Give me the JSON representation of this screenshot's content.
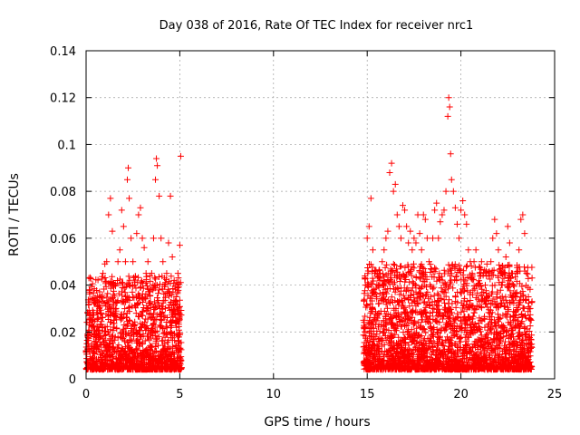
{
  "chart_data": {
    "type": "scatter",
    "title": "Day 038 of 2016, Rate Of TEC Index for receiver nrc1",
    "xlabel": "GPS time / hours",
    "ylabel": "ROTI / TECUs",
    "xlim": [
      0,
      25
    ],
    "ylim": [
      0,
      0.14
    ],
    "xticks": [
      0,
      5,
      10,
      15,
      20,
      25
    ],
    "xtick_labels": [
      "0",
      "5",
      "10",
      "15",
      "20",
      "25"
    ],
    "yticks": [
      0,
      0.02,
      0.04,
      0.06,
      0.08,
      0.1,
      0.12,
      0.14
    ],
    "ytick_labels": [
      "0",
      "0.02",
      "0.04",
      "0.06",
      "0.08",
      "0.1",
      "0.12",
      "0.14"
    ],
    "grid": true,
    "marker": "+",
    "color": "#ff0000",
    "series": [
      {
        "name": "nrc1",
        "points": [
          [
            0.0,
            0.012
          ],
          [
            0.1,
            0.028
          ],
          [
            0.15,
            0.043
          ],
          [
            0.2,
            0.038
          ],
          [
            0.3,
            0.025
          ],
          [
            0.4,
            0.018
          ],
          [
            0.5,
            0.016
          ],
          [
            0.6,
            0.022
          ],
          [
            0.7,
            0.03
          ],
          [
            0.8,
            0.035
          ],
          [
            0.9,
            0.045
          ],
          [
            1.0,
            0.049
          ],
          [
            1.1,
            0.05
          ],
          [
            1.2,
            0.07
          ],
          [
            1.3,
            0.077
          ],
          [
            1.4,
            0.063
          ],
          [
            1.5,
            0.04
          ],
          [
            1.6,
            0.03
          ],
          [
            1.7,
            0.05
          ],
          [
            1.8,
            0.055
          ],
          [
            1.9,
            0.072
          ],
          [
            2.0,
            0.065
          ],
          [
            2.1,
            0.05
          ],
          [
            2.2,
            0.085
          ],
          [
            2.25,
            0.09
          ],
          [
            2.3,
            0.077
          ],
          [
            2.4,
            0.06
          ],
          [
            2.5,
            0.05
          ],
          [
            2.6,
            0.04
          ],
          [
            2.7,
            0.062
          ],
          [
            2.8,
            0.07
          ],
          [
            2.9,
            0.073
          ],
          [
            3.0,
            0.06
          ],
          [
            3.1,
            0.056
          ],
          [
            3.2,
            0.045
          ],
          [
            3.3,
            0.05
          ],
          [
            3.4,
            0.038
          ],
          [
            3.5,
            0.045
          ],
          [
            3.6,
            0.06
          ],
          [
            3.7,
            0.085
          ],
          [
            3.75,
            0.094
          ],
          [
            3.8,
            0.091
          ],
          [
            3.9,
            0.078
          ],
          [
            4.0,
            0.06
          ],
          [
            4.1,
            0.05
          ],
          [
            4.2,
            0.04
          ],
          [
            4.3,
            0.045
          ],
          [
            4.4,
            0.058
          ],
          [
            4.5,
            0.078
          ],
          [
            4.6,
            0.052
          ],
          [
            4.7,
            0.042
          ],
          [
            4.8,
            0.035
          ],
          [
            4.9,
            0.045
          ],
          [
            5.0,
            0.057
          ],
          [
            5.05,
            0.095
          ],
          [
            14.8,
            0.025
          ],
          [
            14.9,
            0.04
          ],
          [
            15.0,
            0.06
          ],
          [
            15.1,
            0.065
          ],
          [
            15.2,
            0.077
          ],
          [
            15.3,
            0.055
          ],
          [
            15.4,
            0.045
          ],
          [
            15.5,
            0.035
          ],
          [
            15.6,
            0.04
          ],
          [
            15.7,
            0.045
          ],
          [
            15.8,
            0.05
          ],
          [
            15.9,
            0.055
          ],
          [
            16.0,
            0.06
          ],
          [
            16.1,
            0.063
          ],
          [
            16.2,
            0.088
          ],
          [
            16.3,
            0.092
          ],
          [
            16.4,
            0.08
          ],
          [
            16.5,
            0.083
          ],
          [
            16.6,
            0.07
          ],
          [
            16.7,
            0.065
          ],
          [
            16.8,
            0.06
          ],
          [
            16.9,
            0.074
          ],
          [
            17.0,
            0.072
          ],
          [
            17.1,
            0.065
          ],
          [
            17.2,
            0.058
          ],
          [
            17.3,
            0.063
          ],
          [
            17.4,
            0.055
          ],
          [
            17.5,
            0.06
          ],
          [
            17.6,
            0.058
          ],
          [
            17.7,
            0.07
          ],
          [
            17.8,
            0.062
          ],
          [
            17.9,
            0.055
          ],
          [
            18.0,
            0.07
          ],
          [
            18.1,
            0.068
          ],
          [
            18.2,
            0.06
          ],
          [
            18.3,
            0.05
          ],
          [
            18.4,
            0.047
          ],
          [
            18.5,
            0.06
          ],
          [
            18.6,
            0.072
          ],
          [
            18.7,
            0.075
          ],
          [
            18.8,
            0.06
          ],
          [
            18.9,
            0.067
          ],
          [
            19.0,
            0.07
          ],
          [
            19.1,
            0.072
          ],
          [
            19.2,
            0.08
          ],
          [
            19.3,
            0.112
          ],
          [
            19.35,
            0.12
          ],
          [
            19.4,
            0.116
          ],
          [
            19.45,
            0.096
          ],
          [
            19.5,
            0.085
          ],
          [
            19.6,
            0.08
          ],
          [
            19.7,
            0.073
          ],
          [
            19.8,
            0.066
          ],
          [
            19.9,
            0.06
          ],
          [
            20.0,
            0.072
          ],
          [
            20.1,
            0.076
          ],
          [
            20.2,
            0.07
          ],
          [
            20.3,
            0.066
          ],
          [
            20.4,
            0.055
          ],
          [
            20.5,
            0.05
          ],
          [
            20.6,
            0.045
          ],
          [
            20.7,
            0.05
          ],
          [
            20.8,
            0.055
          ],
          [
            20.9,
            0.04
          ],
          [
            21.0,
            0.045
          ],
          [
            21.1,
            0.05
          ],
          [
            21.2,
            0.045
          ],
          [
            21.3,
            0.04
          ],
          [
            21.4,
            0.035
          ],
          [
            21.5,
            0.045
          ],
          [
            21.6,
            0.05
          ],
          [
            21.7,
            0.06
          ],
          [
            21.8,
            0.068
          ],
          [
            21.9,
            0.062
          ],
          [
            22.0,
            0.055
          ],
          [
            22.1,
            0.047
          ],
          [
            22.2,
            0.04
          ],
          [
            22.3,
            0.045
          ],
          [
            22.4,
            0.052
          ],
          [
            22.5,
            0.065
          ],
          [
            22.6,
            0.058
          ],
          [
            22.7,
            0.045
          ],
          [
            22.8,
            0.04
          ],
          [
            22.9,
            0.035
          ],
          [
            23.0,
            0.045
          ],
          [
            23.1,
            0.055
          ],
          [
            23.2,
            0.068
          ],
          [
            23.3,
            0.07
          ],
          [
            23.4,
            0.062
          ],
          [
            23.5,
            0.045
          ],
          [
            23.6,
            0.035
          ],
          [
            23.7,
            0.03
          ],
          [
            23.75,
            0.025
          ]
        ]
      }
    ]
  }
}
